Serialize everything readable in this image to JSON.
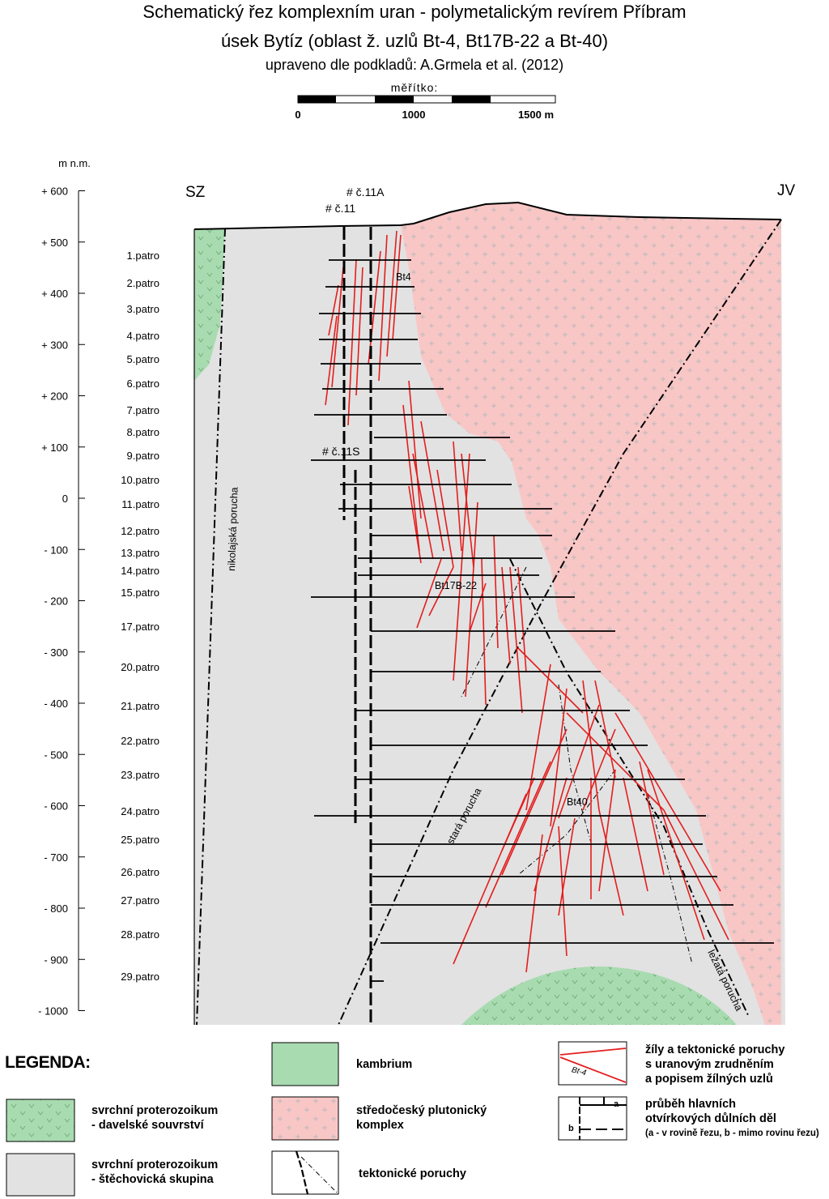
{
  "title": {
    "line1": "Schematický řez komplexním uran - polymetalickým revírem Příbram",
    "line2": "úsek Bytíz (oblast ž. uzlů Bt-4, Bt17B-22 a Bt-40)",
    "line3": "upraveno dle podkladů: A.Grmela et al. (2012)"
  },
  "scale": {
    "label": "měřítko:",
    "ticks": [
      "0",
      "1000",
      "1500 m"
    ]
  },
  "axis": {
    "unit": "m n.m.",
    "labels": [
      "+ 600",
      "+ 500",
      "+ 400",
      "+ 300",
      "+ 200",
      "+ 100",
      "0",
      "- 100",
      "- 200",
      "- 300",
      "- 400",
      "- 500",
      "- 600",
      "- 700",
      "- 800",
      "- 900",
      "- 1000"
    ],
    "values": [
      600,
      500,
      400,
      300,
      200,
      100,
      0,
      -100,
      -200,
      -300,
      -400,
      -500,
      -600,
      -700,
      -800,
      -900,
      -1000
    ]
  },
  "directions": {
    "left": "SZ",
    "right": "JV"
  },
  "shafts": {
    "s11": "# č.11",
    "s11A": "# č.11A",
    "s11S": "# č.11S"
  },
  "levels": [
    "1.patro",
    "2.patro",
    "3.patro",
    "4.patro",
    "5.patro",
    "6.patro",
    "7.patro",
    "8.patro",
    "9.patro",
    "10.patro",
    "11.patro",
    "12.patro",
    "13.patro",
    "14.patro",
    "15.patro",
    "17.patro",
    "20.patro",
    "21.patro",
    "22.patro",
    "23.patro",
    "24.patro",
    "25.patro",
    "26.patro",
    "27.patro",
    "28.patro",
    "29.patro"
  ],
  "nodes": {
    "bt4": "Bt4",
    "bt17": "Bt17B-22",
    "bt40": "Bt40"
  },
  "faults": {
    "nikolajska": "nikolajská porucha",
    "stara": "stará porucha",
    "lezata": "ležatá porucha"
  },
  "legend": {
    "title": "LEGENDA:",
    "kambrium": "kambrium",
    "davelske": [
      "svrchní proterozoikum",
      "- davelské souvrství"
    ],
    "pluton": [
      "středočeský plutonický",
      "komplex"
    ],
    "stechovicka": [
      "svrchní proterozoikum",
      "- štěchovická skupina"
    ],
    "poruchy": "tektonické poruchy",
    "zily": [
      "žíly a tektonické poruchy",
      "s uranovým zrudněním",
      "a popisem žílných uzlů"
    ],
    "zily_sample": "Bt-4",
    "dila": [
      "průběh hlavních",
      "otvírkových důlních děl"
    ],
    "dila_note": "(a - v rovině řezu,  b - mimo rovinu řezu)",
    "dila_a": "a",
    "dila_b": "b"
  },
  "colors": {
    "kambrium": "#a9dbb1",
    "pluton": "#f9c6c6",
    "stechovicka": "#e2e2e2",
    "vein": "#e41e1e",
    "pluton_cross": "#b8b8b8",
    "davelske_mark": "#6cae73"
  },
  "icons": {
    "fault": "dash-dot-line",
    "vein": "red-line",
    "shaft": "hash-symbol"
  }
}
